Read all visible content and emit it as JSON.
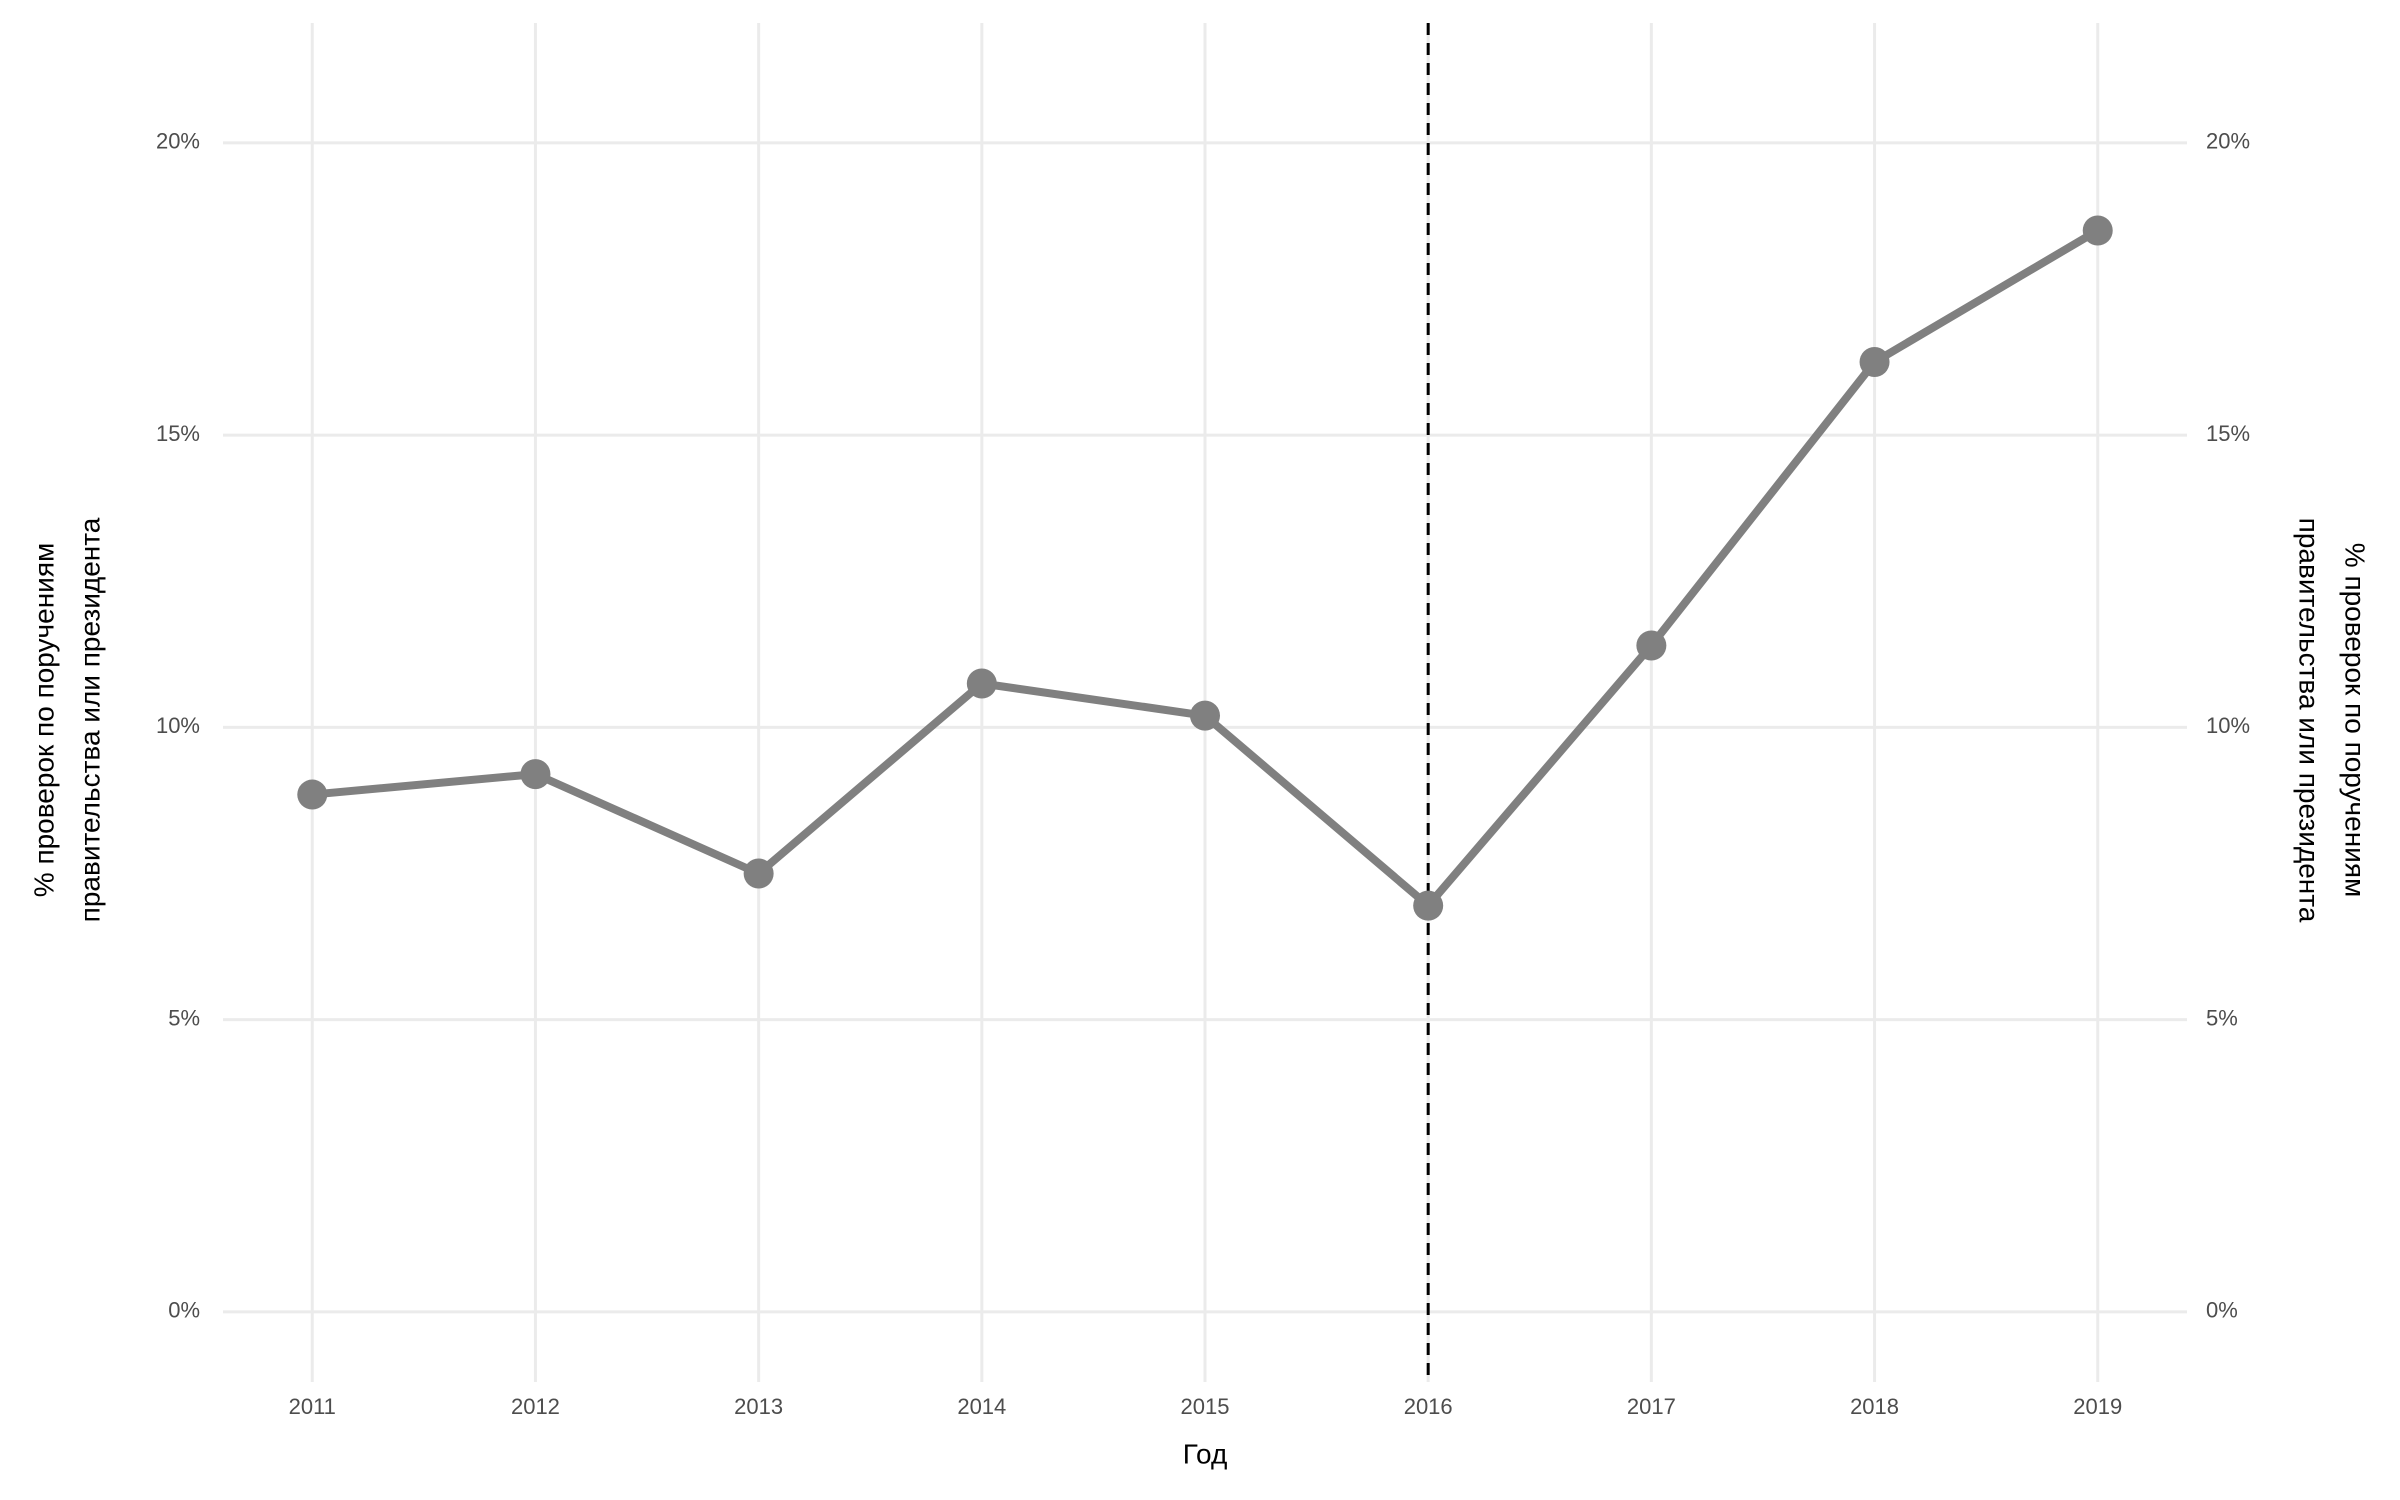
{
  "chart_data": {
    "type": "line",
    "x": [
      2011,
      2012,
      2013,
      2014,
      2015,
      2016,
      2017,
      2018,
      2019
    ],
    "series": [
      {
        "color": "#808080",
        "values": [
          8.85,
          9.2,
          7.5,
          10.75,
          10.2,
          6.95,
          11.4,
          16.25,
          18.5
        ]
      }
    ],
    "xlim": [
      2010.6,
      2019.4
    ],
    "xticks": [
      2011,
      2012,
      2013,
      2014,
      2015,
      2016,
      2017,
      2018,
      2019
    ],
    "ylim": [
      -1.2,
      22.05
    ],
    "yticks": [
      {
        "value": 0,
        "label": "0%"
      },
      {
        "value": 5,
        "label": "5%"
      },
      {
        "value": 10,
        "label": "10%"
      },
      {
        "value": 15,
        "label": "15%"
      },
      {
        "value": 20,
        "label": "20%"
      }
    ],
    "y2lim": [
      -1.2,
      22.05
    ],
    "y2ticks": [
      {
        "value": 0,
        "label": "0%"
      },
      {
        "value": 5,
        "label": "5%"
      },
      {
        "value": 10,
        "label": "10%"
      },
      {
        "value": 15,
        "label": "15%"
      },
      {
        "value": 20,
        "label": "20%"
      }
    ],
    "x_label": "Год",
    "y_label": [
      "% проверок по поручениям",
      "правительства или президента"
    ],
    "y2_label": [
      "% проверок по поручениям",
      "правительства или президента"
    ],
    "vline_x": 2016,
    "grid": true
  }
}
